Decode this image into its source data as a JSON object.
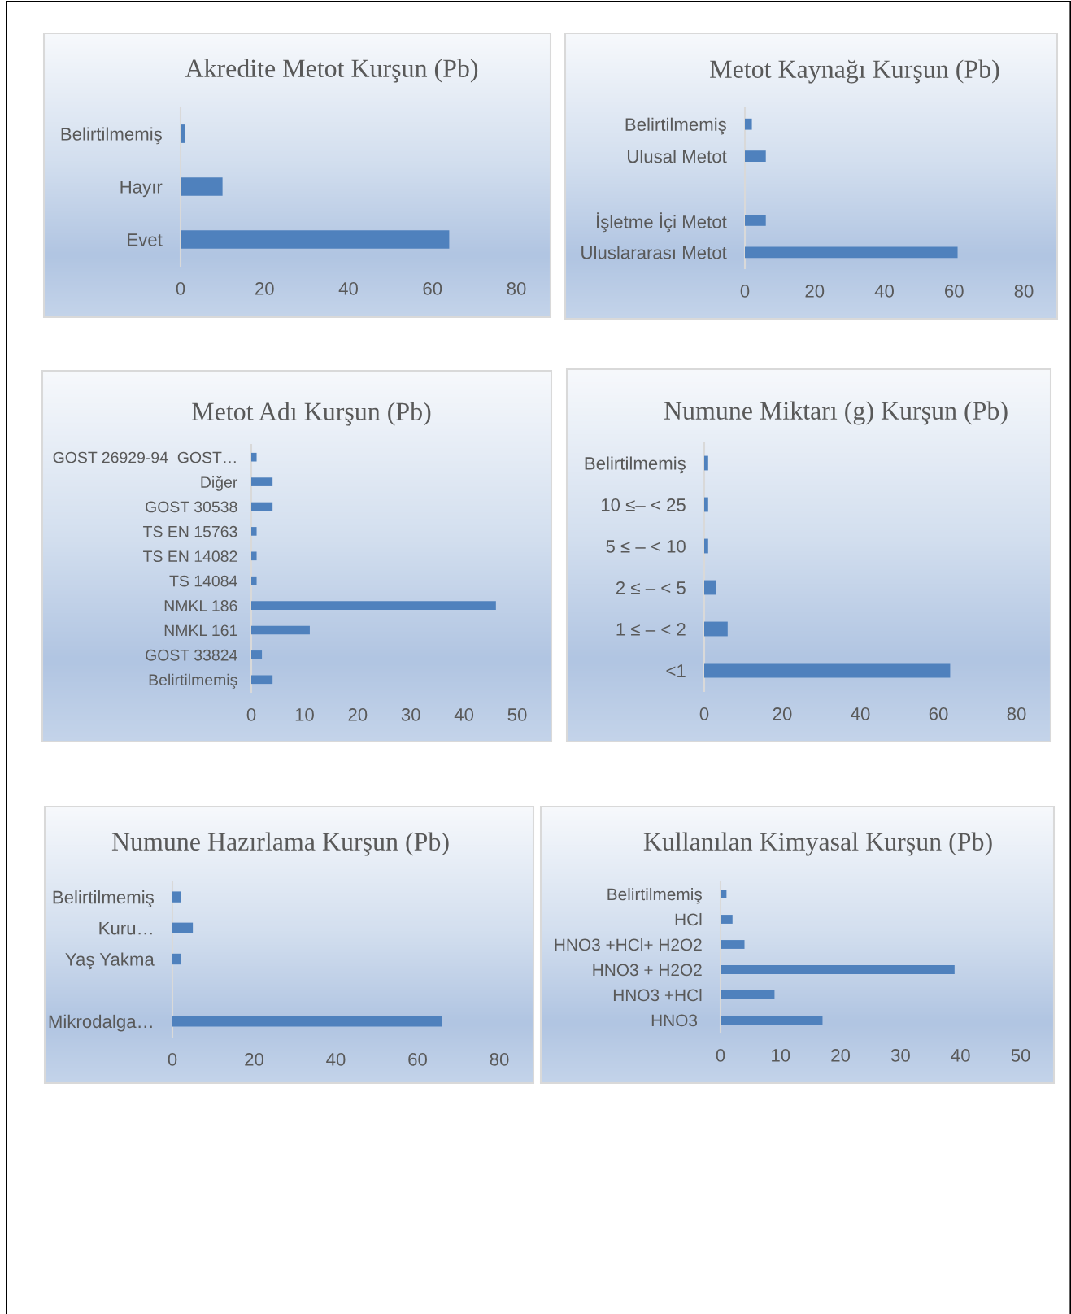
{
  "chart_data": [
    {
      "type": "bar",
      "orientation": "horizontal",
      "title": "Akredite Metot Kurşun (Pb)",
      "categories": [
        "Belirtilmemiş",
        "Hayır",
        "Evet"
      ],
      "values": [
        1,
        10,
        64
      ],
      "color": "#4f81bd",
      "xlim": [
        0,
        80
      ],
      "xticks": [
        0,
        20,
        40,
        60,
        80
      ]
    },
    {
      "type": "bar",
      "orientation": "horizontal",
      "title": "Metot Kaynağı Kurşun (Pb)",
      "categories": [
        "Belirtilmemiş",
        "Ulusal Metot",
        null,
        "İşletme İçi Metot",
        "Uluslararası Metot"
      ],
      "values": [
        2,
        6,
        null,
        6,
        61
      ],
      "color": "#4f81bd",
      "xlim": [
        0,
        80
      ],
      "xticks": [
        0,
        20,
        40,
        60,
        80
      ]
    },
    {
      "type": "bar",
      "orientation": "horizontal",
      "title": "Metot Adı Kurşun (Pb)",
      "categories": [
        "GOST 26929-94  GOST…",
        "Diğer",
        "GOST 30538",
        "TS EN 15763",
        "TS EN 14082",
        "TS 14084",
        "NMKL 186",
        "NMKL 161",
        "GOST 33824",
        "Belirtilmemiş"
      ],
      "values": [
        1,
        4,
        4,
        1,
        1,
        1,
        46,
        11,
        2,
        4
      ],
      "color": "#4f81bd",
      "xlim": [
        0,
        50
      ],
      "xticks": [
        0,
        10,
        20,
        30,
        40,
        50
      ]
    },
    {
      "type": "bar",
      "orientation": "horizontal",
      "title": "Numune Miktarı (g) Kurşun (Pb)",
      "categories": [
        "Belirtilmemiş",
        "10 ≤– < 25",
        "5 ≤ – < 10",
        "2 ≤ – < 5",
        "1 ≤ – < 2",
        "<1"
      ],
      "values": [
        1,
        1,
        1,
        3,
        6,
        63
      ],
      "color": "#4f81bd",
      "xlim": [
        0,
        80
      ],
      "xticks": [
        0,
        20,
        40,
        60,
        80
      ]
    },
    {
      "type": "bar",
      "orientation": "horizontal",
      "title": "Numune Hazırlama Kurşun (Pb)",
      "categories": [
        "Belirtilmemiş",
        "Kuru…",
        "Yaş Yakma",
        null,
        "Mikrodalga…"
      ],
      "values": [
        2,
        5,
        2,
        null,
        66
      ],
      "color": "#4f81bd",
      "xlim": [
        0,
        80
      ],
      "xticks": [
        0,
        20,
        40,
        60,
        80
      ]
    },
    {
      "type": "bar",
      "orientation": "horizontal",
      "title": "Kullanılan Kimyasal Kurşun (Pb)",
      "categories": [
        "Belirtilmemiş",
        "HCl",
        "HNO3 +HCl+ H2O2",
        "HNO3 + H2O2",
        "HNO3 +HCl",
        "HNO3 "
      ],
      "values": [
        1,
        2,
        4,
        39,
        9,
        17
      ],
      "color": "#4f81bd",
      "xlim": [
        0,
        50
      ],
      "xticks": [
        0,
        10,
        20,
        30,
        40,
        50
      ]
    }
  ]
}
